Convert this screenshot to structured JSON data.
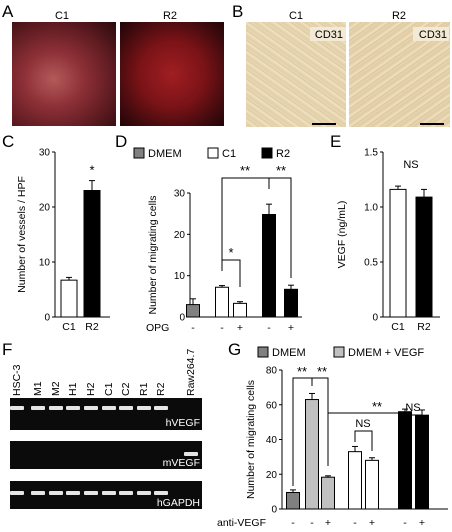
{
  "panels": {
    "A": {
      "letter": "A",
      "labels": [
        "C1",
        "R2"
      ]
    },
    "B": {
      "letter": "B",
      "labels": [
        "C1",
        "R2"
      ],
      "stain": "CD31"
    },
    "F": {
      "letter": "F",
      "lanes": [
        "HSC-3",
        "M1",
        "M2",
        "H1",
        "H2",
        "C1",
        "C2",
        "R1",
        "R2",
        "Raw264.7"
      ],
      "bands": [
        "hVEGF",
        "mVEGF",
        "hGAPDH"
      ]
    }
  },
  "chart_data": [
    {
      "panel": "C",
      "type": "bar",
      "categories": [
        "C1",
        "R2"
      ],
      "values": [
        6.7,
        23
      ],
      "errors": [
        0.5,
        1.8
      ],
      "fills": [
        "#ffffff",
        "#000000"
      ],
      "ylabel": "Number of vessels / HPF",
      "ylim": [
        0,
        30
      ],
      "yticks": [
        "0",
        "10",
        "20",
        "30"
      ],
      "annotations": [
        "*"
      ]
    },
    {
      "panel": "D",
      "type": "bar",
      "legend": [
        {
          "name": "DMEM",
          "color": "#808080"
        },
        {
          "name": "C1",
          "color": "#ffffff"
        },
        {
          "name": "R2",
          "color": "#000000"
        }
      ],
      "values": [
        3,
        7.2,
        3.3,
        24.8,
        6.7
      ],
      "errors": [
        1.4,
        0.4,
        0.4,
        2.5,
        1.0
      ],
      "fills": [
        "#808080",
        "#ffffff",
        "#ffffff",
        "#000000",
        "#000000"
      ],
      "ylabel": "Number of migrating cells",
      "ylim": [
        0,
        30
      ],
      "yticks": [
        "0",
        "10",
        "20",
        "30"
      ],
      "xrow_label": "OPG",
      "xrow_marks": [
        "-",
        "-",
        "+",
        "-",
        "+"
      ],
      "annotations": [
        "*",
        "**",
        "**"
      ]
    },
    {
      "panel": "E",
      "type": "bar",
      "categories": [
        "C1",
        "R2"
      ],
      "values": [
        1.16,
        1.09
      ],
      "errors": [
        0.03,
        0.07
      ],
      "fills": [
        "#ffffff",
        "#000000"
      ],
      "ylabel": "VEGF (ng/mL)",
      "ylim": [
        0,
        1.5
      ],
      "yticks": [
        "0",
        "0.5",
        "1.0",
        "1.5"
      ],
      "annotations": [
        "NS"
      ]
    },
    {
      "panel": "G",
      "type": "bar",
      "legend": [
        {
          "name": "DMEM",
          "color": "#808080"
        },
        {
          "name": "DMEM + VEGF",
          "color": "#c0c0c0"
        }
      ],
      "values": [
        9.5,
        63,
        18.3,
        33,
        28,
        56,
        54
      ],
      "errors": [
        1.5,
        3.5,
        0.8,
        3.0,
        1.5,
        1.5,
        3.0
      ],
      "fills": [
        "#808080",
        "#c0c0c0",
        "#c0c0c0",
        "#ffffff",
        "#ffffff",
        "#000000",
        "#000000"
      ],
      "ylabel": "Number of migrating cells",
      "ylim": [
        0,
        80
      ],
      "yticks": [
        "0",
        "20",
        "40",
        "60",
        "80"
      ],
      "xrow_label": "anti-VEGF",
      "xrow_marks": [
        "-",
        "-",
        "+",
        "-",
        "+",
        "-",
        "+"
      ],
      "annotations": [
        "**",
        "**",
        "**",
        "NS",
        "NS"
      ]
    }
  ]
}
